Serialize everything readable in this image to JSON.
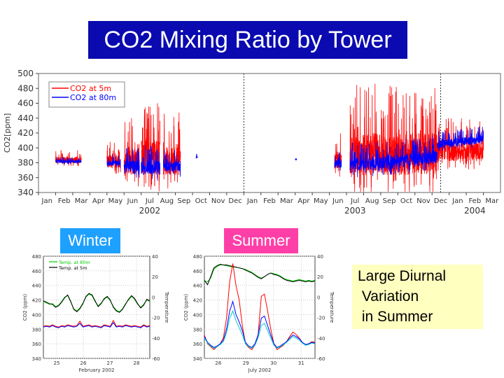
{
  "title": "CO2 Mixing Ratio by Tower",
  "winter_label": "Winter",
  "summer_label": "Summer",
  "note": "Large Diurnal\n Variation\n in Summer",
  "colors": {
    "title_bg": "#0a0ab0",
    "winter_bg": "#1ea0ff",
    "summer_bg": "#ff3fa8",
    "note_bg": "#ffffc0",
    "co2_5m": "#ff0000",
    "co2_80m": "#0000ff"
  },
  "chart_data": [
    {
      "type": "line",
      "ylabel": "CO2[ppm]",
      "ylim": [
        340,
        500
      ],
      "yticks": [
        340,
        360,
        380,
        400,
        420,
        440,
        460,
        480,
        500
      ],
      "months": [
        "Jan",
        "Feb",
        "Mar",
        "Apr",
        "May",
        "Jun",
        "Jul",
        "Aug",
        "Sep",
        "Oct",
        "Nov",
        "Dec",
        "Jan",
        "Feb",
        "Mar",
        "Apr",
        "May",
        "Jun",
        "Jul",
        "Aug",
        "Sep",
        "Oct",
        "Nov",
        "Dec",
        "Jan",
        "Feb",
        "Mar"
      ],
      "years": [
        {
          "label": "2002",
          "month_index": 6
        },
        {
          "label": "2003",
          "month_index": 18
        },
        {
          "label": "2004",
          "month_index": 25
        }
      ],
      "year_dividers_month_index": [
        12,
        23.5
      ],
      "legend": [
        "CO2 at 5m",
        "CO2 at 80m"
      ],
      "legend_position": "top-left",
      "series": [
        {
          "name": "CO2 at 5m",
          "segments": [
            {
              "x0": 1.0,
              "x1": 2.5,
              "base": 382,
              "amp": 14
            },
            {
              "x0": 4.0,
              "x1": 4.8,
              "base": 378,
              "amp": 28
            },
            {
              "x0": 5.0,
              "x1": 5.9,
              "base": 375,
              "amp": 60
            },
            {
              "x0": 6.0,
              "x1": 7.1,
              "base": 378,
              "amp": 78
            },
            {
              "x0": 7.3,
              "x1": 8.3,
              "base": 375,
              "amp": 65
            },
            {
              "x0": 17.3,
              "x1": 17.7,
              "base": 378,
              "amp": 40
            },
            {
              "x0": 18.2,
              "x1": 23.3,
              "base": 380,
              "amp": 95
            },
            {
              "x0": 23.3,
              "x1": 26.0,
              "base": 390,
              "amp": 45
            }
          ]
        },
        {
          "name": "CO2 at 80m",
          "segments": [
            {
              "x0": 1.0,
              "x1": 2.5,
              "base": 381,
              "amp": 6
            },
            {
              "x0": 4.0,
              "x1": 4.8,
              "base": 378,
              "amp": 12
            },
            {
              "x0": 5.0,
              "x1": 5.9,
              "base": 372,
              "amp": 28
            },
            {
              "x0": 6.0,
              "x1": 7.1,
              "base": 370,
              "amp": 30
            },
            {
              "x0": 7.3,
              "x1": 8.3,
              "base": 372,
              "amp": 24
            },
            {
              "x0": 9.2,
              "x1": 9.3,
              "base": 387,
              "amp": 5
            },
            {
              "x0": 15.0,
              "x1": 15.1,
              "base": 384,
              "amp": 4
            },
            {
              "x0": 17.3,
              "x1": 17.7,
              "base": 376,
              "amp": 20
            },
            {
              "x0": 18.2,
              "x1": 23.3,
              "base": 375,
              "amp": 30
            },
            {
              "x0": 23.3,
              "x1": 26.0,
              "base": 392,
              "amp": 18
            }
          ]
        }
      ]
    },
    {
      "type": "line",
      "title": "Winter",
      "xlabel": "February 2002",
      "ylabel": "CO2 (ppm)",
      "ylabel_right": "Temperature",
      "ylim": [
        340,
        480
      ],
      "yticks": [
        340,
        360,
        380,
        400,
        420,
        440,
        460,
        480
      ],
      "yticks_right": [
        -60,
        -40,
        -20,
        0,
        20,
        40
      ],
      "xticks": [
        "25",
        "26",
        "27",
        "28"
      ],
      "legend": [
        "Temp. at 80m",
        "Temp. at 5m"
      ],
      "series": [
        {
          "name": "Temp. at 80m",
          "color": "#00cc00",
          "values": [
            418,
            416,
            414,
            415,
            411,
            413,
            418,
            424,
            426,
            417,
            408,
            405,
            409,
            416,
            424,
            428,
            426,
            418,
            412,
            416,
            421,
            424,
            419,
            411,
            406,
            404,
            408,
            415,
            420,
            425,
            421,
            414,
            410,
            414,
            420,
            418
          ]
        },
        {
          "name": "Temp. at 5m",
          "color": "#000000",
          "values": [
            419,
            417,
            415,
            414,
            410,
            412,
            417,
            423,
            427,
            418,
            407,
            404,
            408,
            415,
            425,
            429,
            427,
            419,
            411,
            415,
            422,
            425,
            420,
            410,
            405,
            403,
            407,
            414,
            421,
            426,
            422,
            415,
            409,
            413,
            421,
            419
          ]
        },
        {
          "color": "#ff0000",
          "values": [
            384,
            385,
            384,
            386,
            384,
            383,
            385,
            384,
            386,
            385,
            384,
            385,
            391,
            384,
            385,
            386,
            384,
            385,
            384,
            383,
            386,
            385,
            384,
            392,
            384,
            385,
            384,
            386,
            385,
            384,
            385,
            384,
            383,
            386,
            384,
            385
          ]
        },
        {
          "color": "#0000ff",
          "values": [
            383,
            384,
            383,
            385,
            383,
            382,
            384,
            383,
            385,
            384,
            383,
            384,
            388,
            383,
            384,
            385,
            383,
            384,
            383,
            382,
            385,
            384,
            383,
            389,
            383,
            384,
            383,
            385,
            384,
            383,
            384,
            383,
            382,
            385,
            383,
            384
          ]
        }
      ]
    },
    {
      "type": "line",
      "title": "Summer",
      "xlabel": "July 2002",
      "ylabel": "CO2 (ppm)",
      "ylabel_right": "Temperature",
      "ylim": [
        340,
        480
      ],
      "yticks": [
        340,
        360,
        380,
        400,
        420,
        440,
        460,
        480
      ],
      "yticks_right": [
        -60,
        -40,
        -20,
        0,
        20,
        40
      ],
      "xticks": [
        "28",
        "29",
        "30",
        "31"
      ],
      "series": [
        {
          "color": "#00cc00",
          "values": [
            446,
            445,
            450,
            462,
            466,
            468,
            468,
            467,
            466,
            465,
            465,
            464,
            463,
            462,
            460,
            458,
            455,
            452,
            450,
            452,
            455,
            457,
            456,
            455,
            453,
            450,
            448,
            447,
            446,
            447,
            448,
            447,
            446,
            447,
            446,
            447
          ]
        },
        {
          "color": "#000000",
          "values": [
            447,
            441,
            452,
            464,
            467,
            469,
            468,
            468,
            467,
            466,
            465,
            464,
            463,
            461,
            459,
            457,
            454,
            451,
            449,
            452,
            455,
            457,
            455,
            454,
            452,
            449,
            447,
            446,
            445,
            446,
            447,
            446,
            445,
            446,
            445,
            446
          ]
        },
        {
          "color": "#ff0000",
          "values": [
            372,
            360,
            356,
            352,
            356,
            360,
            368,
            395,
            445,
            470,
            440,
            420,
            385,
            360,
            355,
            352,
            358,
            372,
            425,
            428,
            405,
            380,
            360,
            352,
            355,
            358,
            363,
            370,
            376,
            373,
            368,
            362,
            358,
            360,
            363,
            362
          ]
        },
        {
          "color": "#0000ff",
          "values": [
            370,
            362,
            358,
            355,
            357,
            360,
            365,
            380,
            405,
            418,
            400,
            390,
            378,
            362,
            357,
            355,
            360,
            372,
            395,
            398,
            385,
            372,
            360,
            355,
            357,
            360,
            363,
            368,
            372,
            370,
            367,
            362,
            359,
            360,
            362,
            361
          ]
        },
        {
          "color": "#00cccc",
          "values": [
            368,
            361,
            357,
            354,
            356,
            359,
            363,
            375,
            395,
            405,
            392,
            382,
            372,
            360,
            356,
            354,
            358,
            368,
            385,
            388,
            378,
            368,
            358,
            354,
            356,
            359,
            362,
            366,
            370,
            368,
            365,
            361,
            358,
            359,
            361,
            360
          ]
        }
      ]
    }
  ]
}
